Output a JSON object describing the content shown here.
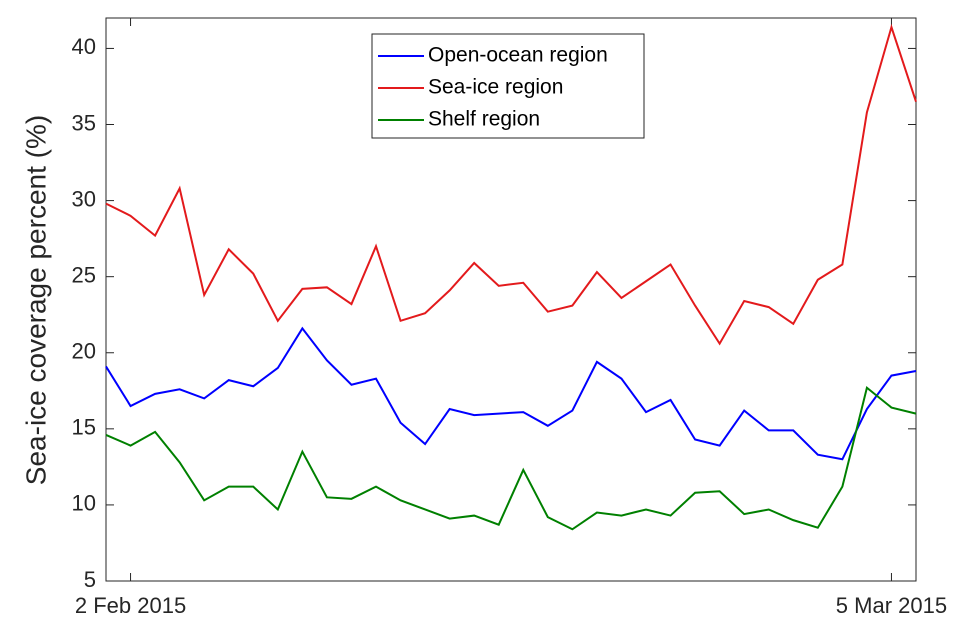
{
  "chart_data": {
    "type": "line",
    "y_label": "Sea-ice coverage percent (%)",
    "x": [
      "2015-02-01",
      "2015-02-02",
      "2015-02-03",
      "2015-02-04",
      "2015-02-05",
      "2015-02-06",
      "2015-02-07",
      "2015-02-08",
      "2015-02-09",
      "2015-02-10",
      "2015-02-11",
      "2015-02-12",
      "2015-02-13",
      "2015-02-14",
      "2015-02-15",
      "2015-02-16",
      "2015-02-17",
      "2015-02-18",
      "2015-02-19",
      "2015-02-20",
      "2015-02-21",
      "2015-02-22",
      "2015-02-23",
      "2015-02-24",
      "2015-02-25",
      "2015-02-26",
      "2015-02-27",
      "2015-02-28",
      "2015-03-01",
      "2015-03-02",
      "2015-03-03",
      "2015-03-04",
      "2015-03-05",
      "2015-03-06"
    ],
    "series": [
      {
        "name": "Open-ocean region",
        "color": "#0000ff",
        "values": [
          19.1,
          16.5,
          17.3,
          17.6,
          17.0,
          18.2,
          17.8,
          19.0,
          21.6,
          19.5,
          17.9,
          18.3,
          15.4,
          14.0,
          16.3,
          15.9,
          16.0,
          16.1,
          15.2,
          16.2,
          19.4,
          18.3,
          16.1,
          16.9,
          14.3,
          13.9,
          16.2,
          14.9,
          14.9,
          13.3,
          13.0,
          16.3,
          18.5,
          18.8
        ]
      },
      {
        "name": "Sea-ice region",
        "color": "#e31a1c",
        "values": [
          29.8,
          29.0,
          27.7,
          30.8,
          23.8,
          26.8,
          25.2,
          22.1,
          24.2,
          24.3,
          23.2,
          27.0,
          22.1,
          22.6,
          24.1,
          25.9,
          24.4,
          24.6,
          22.7,
          23.1,
          25.3,
          23.6,
          24.7,
          25.8,
          23.1,
          20.6,
          23.4,
          23.0,
          21.9,
          24.8,
          25.8,
          35.8,
          41.4,
          36.5
        ]
      },
      {
        "name": "Shelf region",
        "color": "#008000",
        "values": [
          14.6,
          13.9,
          14.8,
          12.8,
          10.3,
          11.2,
          11.2,
          9.7,
          13.5,
          10.5,
          10.4,
          11.2,
          10.3,
          9.7,
          9.1,
          9.3,
          8.7,
          12.3,
          9.2,
          8.4,
          9.5,
          9.3,
          9.7,
          9.3,
          10.8,
          10.9,
          9.4,
          9.7,
          9.0,
          8.5,
          11.2,
          17.7,
          16.4,
          16.0
        ]
      }
    ],
    "xlim": [
      "2015-02-01",
      "2015-03-06"
    ],
    "xticks": [
      {
        "value": "2015-02-02",
        "label": "2 Feb 2015"
      },
      {
        "value": "2015-03-05",
        "label": "5 Mar 2015"
      }
    ],
    "ylim": [
      5,
      42
    ],
    "yticks": [
      5,
      10,
      15,
      20,
      25,
      30,
      35,
      40
    ],
    "legend": "top"
  }
}
